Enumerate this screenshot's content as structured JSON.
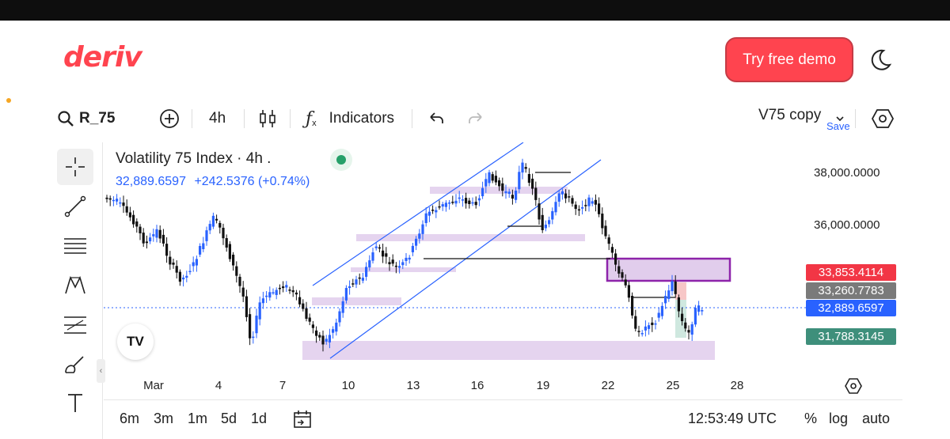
{
  "header": {
    "logo": "deriv",
    "try_demo_label": "Try free demo"
  },
  "toolbar": {
    "symbol": "R_75",
    "interval": "4h",
    "indicators_label": "Indicators",
    "layout_name": "V75 copy",
    "save_label": "Save"
  },
  "chart": {
    "title": "Volatility 75 Index · 4h .",
    "last_price": "32,889.6597",
    "change": "+242.5376 (+0.74%)",
    "y_axis_labels": [
      "38,000.0000",
      "36,000.0000",
      "33,853.4114",
      "33,260.7783",
      "32,889.6597",
      "31,788.3145"
    ],
    "x_axis_labels": [
      "Mar",
      "4",
      "7",
      "10",
      "13",
      "16",
      "19",
      "22",
      "25",
      "28"
    ],
    "colors": {
      "up": "#2962ff",
      "down": "#111111",
      "zone": "#e1cdec",
      "red_tag": "#f23645",
      "gray_tag": "#7a7a7a",
      "blue_tag": "#2962ff",
      "green_tag": "#3e8f7b",
      "channel": "#2962ff",
      "box_border": "#8e24aa"
    }
  },
  "chart_data": {
    "type": "candlestick",
    "title": "Volatility 75 Index · 4h .",
    "x": [
      "Mar",
      "4",
      "7",
      "10",
      "13",
      "16",
      "19",
      "22",
      "25",
      "28"
    ],
    "y_ticks": [
      38000,
      36000
    ],
    "price_tags": [
      33853.4114,
      33260.7783,
      32889.6597,
      31788.3145
    ],
    "last_price": 32889.6597,
    "change": 242.5376,
    "change_pct": 0.74
  },
  "bottom": {
    "ranges": [
      "6m",
      "3m",
      "1m",
      "5d",
      "1d"
    ],
    "clock": "12:53:49 UTC",
    "percent": "%",
    "log": "log",
    "auto": "auto"
  }
}
